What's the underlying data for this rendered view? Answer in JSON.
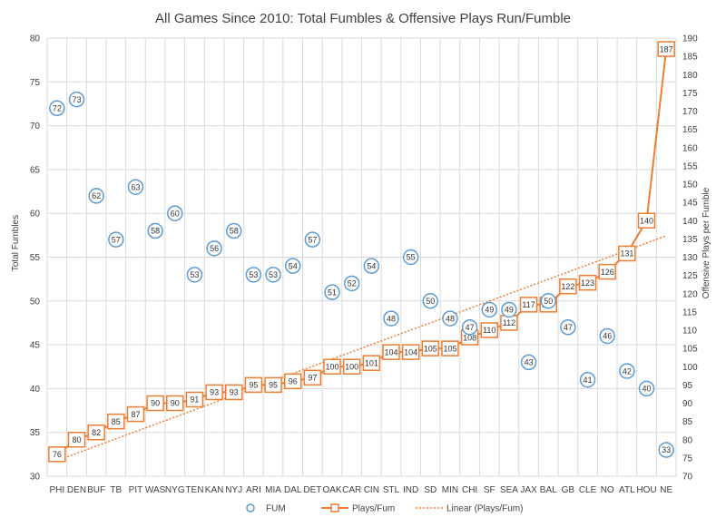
{
  "chart_data": {
    "type": "line",
    "title": "All Games Since 2010: Total Fumbles & Offensive Plays Run/Fumble",
    "categories": [
      "PHI",
      "DEN",
      "BUF",
      "TB",
      "PIT",
      "WAS",
      "NYG",
      "TEN",
      "KAN",
      "NYJ",
      "ARI",
      "MIA",
      "DAL",
      "DET",
      "OAK",
      "CAR",
      "CIN",
      "STL",
      "IND",
      "SD",
      "MIN",
      "CHI",
      "SF",
      "SEA",
      "JAX",
      "BAL",
      "GB",
      "CLE",
      "NO",
      "ATL",
      "HOU",
      "NE"
    ],
    "series": [
      {
        "name": "FUM",
        "kind": "scatter",
        "axis": "left",
        "values": [
          72,
          73,
          62,
          57,
          63,
          58,
          60,
          53,
          56,
          58,
          53,
          53,
          54,
          57,
          51,
          52,
          54,
          48,
          55,
          50,
          48,
          47,
          49,
          49,
          43,
          50,
          47,
          41,
          46,
          42,
          40,
          33
        ]
      },
      {
        "name": "Plays/Fum",
        "kind": "line",
        "axis": "right",
        "values": [
          76,
          80,
          82,
          85,
          87,
          90,
          90,
          91,
          93,
          93,
          95,
          95,
          96,
          97,
          100,
          100,
          101,
          104,
          104,
          105,
          105,
          108,
          110,
          112,
          117,
          117,
          122,
          123,
          126,
          131,
          140,
          187
        ]
      },
      {
        "name": "Linear (Plays/Fum)",
        "kind": "trendline",
        "axis": "right"
      }
    ],
    "ylabel": "Total Fumbles",
    "y2label": "Offensive Plays per Fumble",
    "ylim": [
      30,
      80
    ],
    "y2lim": [
      70,
      190
    ],
    "yticks": [
      30,
      35,
      40,
      45,
      50,
      55,
      60,
      65,
      70,
      75,
      80
    ],
    "y2ticks": [
      70,
      75,
      80,
      85,
      90,
      95,
      100,
      105,
      110,
      115,
      120,
      125,
      130,
      135,
      140,
      145,
      150,
      155,
      160,
      165,
      170,
      175,
      180,
      185,
      190
    ],
    "grid": true,
    "legend": "bottom",
    "colors": {
      "fum": "#5b9bd5",
      "plays": "#ed7d31",
      "grid": "#d9d9d9",
      "text": "#404040"
    }
  }
}
